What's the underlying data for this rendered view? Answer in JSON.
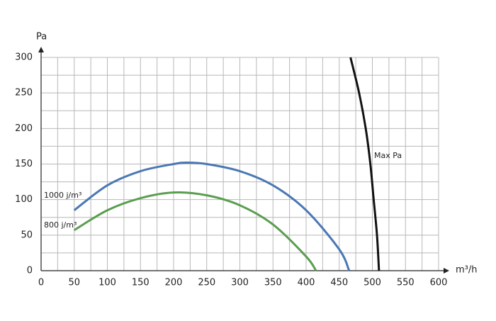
{
  "chart_data": {
    "type": "line",
    "x_label": "m³/h",
    "y_label": "Pa",
    "xlim": [
      0,
      600
    ],
    "xticks": [
      0,
      50,
      100,
      150,
      200,
      250,
      300,
      350,
      400,
      450,
      500,
      550,
      600
    ],
    "ylim": [
      0,
      300
    ],
    "yticks": [
      0,
      50,
      100,
      150,
      200,
      250,
      300
    ],
    "grid": true,
    "series": [
      {
        "name": "1000 j/m³",
        "color": "#4a78b5",
        "x": [
          50,
          100,
          150,
          200,
          220,
          250,
          300,
          350,
          400,
          450,
          465
        ],
        "values": [
          85,
          120,
          140,
          150,
          152,
          150,
          140,
          120,
          85,
          30,
          0
        ]
      },
      {
        "name": "800 j/m³",
        "color": "#5a9e4f",
        "x": [
          50,
          100,
          150,
          200,
          250,
          300,
          350,
          400,
          415
        ],
        "values": [
          57,
          85,
          102,
          110,
          106,
          92,
          65,
          20,
          0
        ]
      },
      {
        "name": "Max Pa",
        "color": "#111111",
        "x": [
          467,
          480,
          490,
          497,
          502,
          507,
          510
        ],
        "values": [
          300,
          250,
          200,
          150,
          100,
          50,
          0
        ]
      }
    ]
  }
}
